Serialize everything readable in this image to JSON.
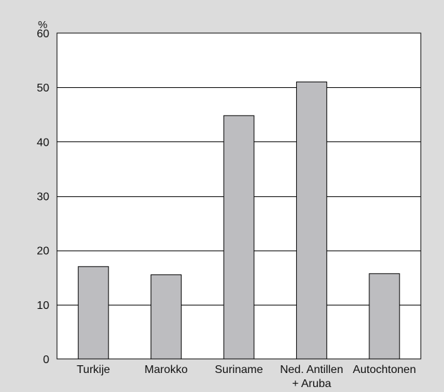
{
  "chart_data": {
    "type": "bar",
    "title": "",
    "ylabel": "%",
    "xlabel": "",
    "ylim": [
      0,
      60
    ],
    "yticks": [
      0,
      10,
      20,
      30,
      40,
      50,
      60
    ],
    "grid": "horizontal",
    "categories": [
      [
        "Turkije"
      ],
      [
        "Marokko"
      ],
      [
        "Suriname"
      ],
      [
        "Ned. Antillen",
        "+ Aruba"
      ],
      [
        "Autochtonen"
      ]
    ],
    "values": [
      17,
      15.5,
      44.8,
      51,
      15.7
    ],
    "colors": {
      "background": "#dcdcdc",
      "plot_area": "#ffffff",
      "bar_fill": "#bdbdc0",
      "bar_stroke": "#000000",
      "grid": "#000000"
    }
  }
}
